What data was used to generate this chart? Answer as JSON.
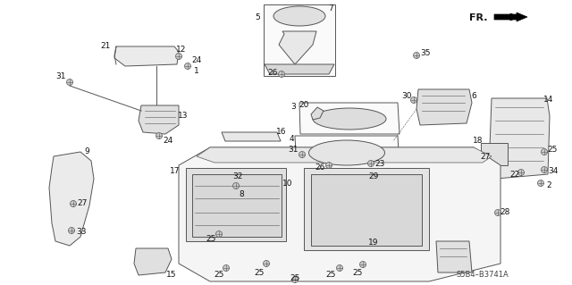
{
  "bg_color": "#ffffff",
  "diagram_code": "S5B4–B3741A",
  "fr_label": "FR.",
  "line_color": "#555555",
  "lw": 0.7
}
